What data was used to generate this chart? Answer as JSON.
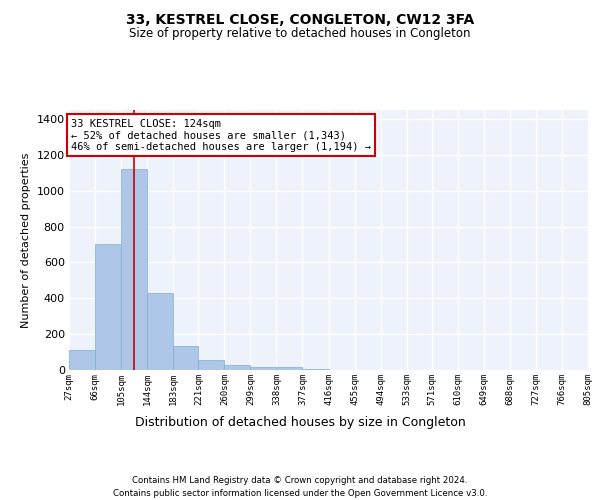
{
  "title": "33, KESTREL CLOSE, CONGLETON, CW12 3FA",
  "subtitle": "Size of property relative to detached houses in Congleton",
  "xlabel": "Distribution of detached houses by size in Congleton",
  "ylabel": "Number of detached properties",
  "annotation_line1": "33 KESTREL CLOSE: 124sqm",
  "annotation_line2": "← 52% of detached houses are smaller (1,343)",
  "annotation_line3": "46% of semi-detached houses are larger (1,194) →",
  "footer1": "Contains HM Land Registry data © Crown copyright and database right 2024.",
  "footer2": "Contains public sector information licensed under the Open Government Licence v3.0.",
  "bin_edges": [
    27,
    66,
    105,
    144,
    183,
    221,
    260,
    299,
    338,
    377,
    416,
    455,
    494,
    533,
    571,
    610,
    649,
    688,
    727,
    766,
    805
  ],
  "bar_heights": [
    110,
    700,
    1120,
    430,
    135,
    55,
    30,
    15,
    15,
    5,
    2,
    0,
    0,
    0,
    0,
    0,
    0,
    0,
    0,
    0
  ],
  "bar_color": "#aec6e8",
  "bar_edge_color": "#7fafd4",
  "property_size": 124,
  "red_line_color": "#cc0000",
  "ylim": [
    0,
    1450
  ],
  "yticks": [
    0,
    200,
    400,
    600,
    800,
    1000,
    1200,
    1400
  ],
  "bg_color": "#eef2fb",
  "grid_color": "#ffffff",
  "annotation_box_color": "#cc0000"
}
